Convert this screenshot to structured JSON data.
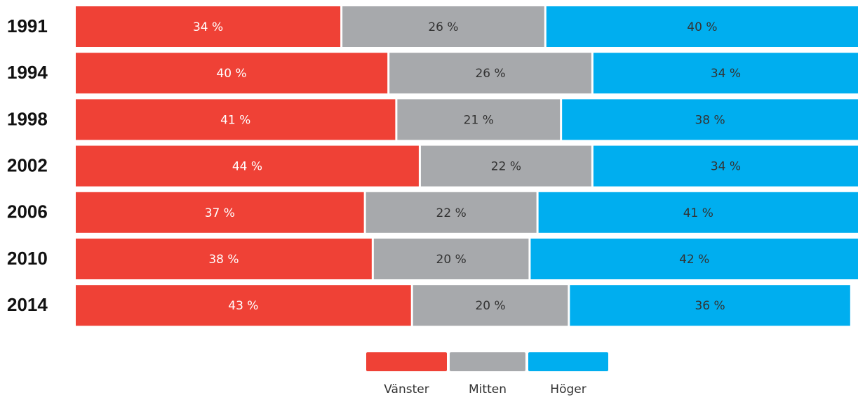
{
  "chart_data": {
    "type": "stacked-bar-horizontal",
    "categories": [
      "1991",
      "1994",
      "1998",
      "2002",
      "2006",
      "2010",
      "2014"
    ],
    "xlim": [
      0,
      100
    ],
    "legend": "bottom",
    "series": [
      {
        "name": "Vänster",
        "color": "#ef4136",
        "values": [
          34,
          40,
          41,
          44,
          37,
          38,
          43
        ],
        "value_labels": [
          "34 %",
          "40 %",
          "41 %",
          "44 %",
          "37 %",
          "38 %",
          "43 %"
        ]
      },
      {
        "name": "Mitten",
        "color": "#a7a9ac",
        "values": [
          26,
          26,
          21,
          22,
          22,
          20,
          20
        ],
        "value_labels": [
          "26 %",
          "26 %",
          "21 %",
          "22 %",
          "22 %",
          "20 %",
          "20 %"
        ]
      },
      {
        "name": "Höger",
        "color": "#00aeef",
        "values": [
          40,
          34,
          38,
          34,
          41,
          42,
          36
        ],
        "value_labels": [
          "40 %",
          "34 %",
          "38 %",
          "34 %",
          "41 %",
          "42 %",
          "36 %"
        ]
      }
    ]
  }
}
